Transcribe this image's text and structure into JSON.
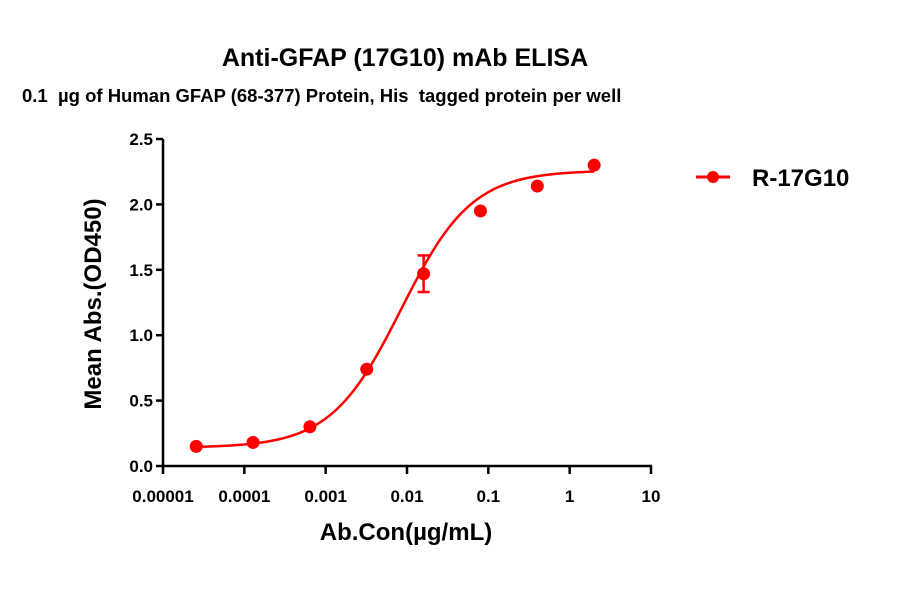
{
  "chart_data": {
    "type": "scatter",
    "title": "Anti-GFAP (17G10) mAb ELISA",
    "subtitle": "0.1  µg of Human GFAP (68-377) Protein, His  tagged protein per well",
    "xlabel": "Ab.Con(µg/mL)",
    "ylabel": "Mean Abs.(OD450)",
    "xscale": "log10",
    "xlim": [
      1e-05,
      10
    ],
    "ylim": [
      0,
      2.5
    ],
    "x_ticks": [
      1e-05,
      0.0001,
      0.001,
      0.01,
      0.1,
      1,
      10
    ],
    "x_tick_labels": [
      "0.00001",
      "0.0001",
      "0.001",
      "0.01",
      "0.1",
      "1",
      "10"
    ],
    "y_ticks": [
      0,
      0.5,
      1.0,
      1.5,
      2.0,
      2.5
    ],
    "y_tick_labels": [
      "0.0",
      "0.5",
      "1.0",
      "1.5",
      "2.0",
      "2.5"
    ],
    "grid": false,
    "legend_position": "right",
    "color": "#ff0000",
    "series": [
      {
        "name": "R-17G10",
        "x": [
          2.56e-05,
          0.000128,
          0.00064,
          0.0032,
          0.016,
          0.08,
          0.4,
          2
        ],
        "y": [
          0.15,
          0.18,
          0.3,
          0.74,
          1.47,
          1.95,
          2.14,
          2.3
        ],
        "error": [
          0,
          0,
          0,
          0,
          0.14,
          0,
          0,
          0
        ],
        "fit": {
          "model": "4PL",
          "bottom": 0.14,
          "top": 2.26,
          "ec50": 0.0085,
          "hill": 1.0
        }
      }
    ]
  }
}
